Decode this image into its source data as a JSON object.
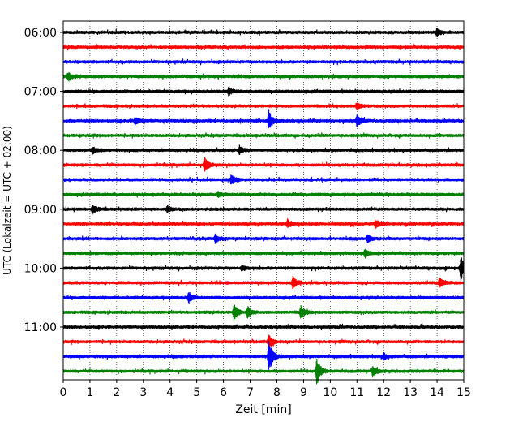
{
  "chart_data": {
    "type": "line",
    "title": "",
    "xlabel": "Zeit  [min]",
    "ylabel": "UTC (Lokalzeit = UTC + 02:00)",
    "xlim": [
      0,
      15
    ],
    "x_ticks": [
      "0",
      "1",
      "2",
      "3",
      "4",
      "5",
      "6",
      "7",
      "8",
      "9",
      "10",
      "11",
      "12",
      "13",
      "14",
      "15"
    ],
    "y_ticks": [
      "06:00",
      "07:00",
      "08:00",
      "09:00",
      "10:00",
      "11:00"
    ],
    "grid": "vertical dotted lines at each minute",
    "trace_interval_min": 15,
    "colors": [
      "#000000",
      "#ff0000",
      "#0000ff",
      "#008000"
    ],
    "series": [
      {
        "start": "06:00",
        "events": [
          {
            "x": 14.0,
            "amp": 0.3
          }
        ]
      },
      {
        "start": "06:15",
        "events": []
      },
      {
        "start": "06:30",
        "events": []
      },
      {
        "start": "06:45",
        "events": [
          {
            "x": 0.2,
            "amp": 0.3
          }
        ]
      },
      {
        "start": "07:00",
        "events": [
          {
            "x": 6.2,
            "amp": 0.3
          }
        ]
      },
      {
        "start": "07:15",
        "events": [
          {
            "x": 11.0,
            "amp": 0.25
          }
        ]
      },
      {
        "start": "07:30",
        "events": [
          {
            "x": 2.7,
            "amp": 0.3
          },
          {
            "x": 7.7,
            "amp": 0.7
          },
          {
            "x": 11.0,
            "amp": 0.4
          }
        ]
      },
      {
        "start": "07:45",
        "events": []
      },
      {
        "start": "08:00",
        "events": [
          {
            "x": 1.1,
            "amp": 0.25
          },
          {
            "x": 6.6,
            "amp": 0.3
          }
        ]
      },
      {
        "start": "08:15",
        "events": [
          {
            "x": 5.3,
            "amp": 0.5
          }
        ]
      },
      {
        "start": "08:30",
        "events": [
          {
            "x": 6.3,
            "amp": 0.35
          }
        ]
      },
      {
        "start": "08:45",
        "events": [
          {
            "x": 5.8,
            "amp": 0.2
          }
        ]
      },
      {
        "start": "09:00",
        "events": [
          {
            "x": 1.1,
            "amp": 0.3
          },
          {
            "x": 3.9,
            "amp": 0.2
          }
        ]
      },
      {
        "start": "09:15",
        "events": [
          {
            "x": 8.4,
            "amp": 0.25
          },
          {
            "x": 11.7,
            "amp": 0.3
          }
        ]
      },
      {
        "start": "09:30",
        "events": [
          {
            "x": 5.7,
            "amp": 0.3
          },
          {
            "x": 11.4,
            "amp": 0.3
          }
        ]
      },
      {
        "start": "09:45",
        "events": [
          {
            "x": 11.3,
            "amp": 0.3
          }
        ]
      },
      {
        "start": "10:00",
        "events": [
          {
            "x": 6.7,
            "amp": 0.2
          },
          {
            "x": 14.9,
            "amp": 1.0
          }
        ]
      },
      {
        "start": "10:15",
        "events": [
          {
            "x": 8.6,
            "amp": 0.45
          },
          {
            "x": 14.1,
            "amp": 0.4
          }
        ]
      },
      {
        "start": "10:30",
        "events": [
          {
            "x": 4.7,
            "amp": 0.4
          }
        ]
      },
      {
        "start": "10:45",
        "events": [
          {
            "x": 6.4,
            "amp": 0.65
          },
          {
            "x": 6.9,
            "amp": 0.4
          },
          {
            "x": 8.9,
            "amp": 0.5
          }
        ]
      },
      {
        "start": "11:00",
        "events": []
      },
      {
        "start": "11:15",
        "events": [
          {
            "x": 7.7,
            "amp": 0.5
          }
        ]
      },
      {
        "start": "11:30",
        "events": [
          {
            "x": 7.7,
            "amp": 1.3
          },
          {
            "x": 12.0,
            "amp": 0.25
          }
        ]
      },
      {
        "start": "11:45",
        "events": [
          {
            "x": 9.5,
            "amp": 1.0
          },
          {
            "x": 11.6,
            "amp": 0.4
          }
        ]
      }
    ]
  }
}
